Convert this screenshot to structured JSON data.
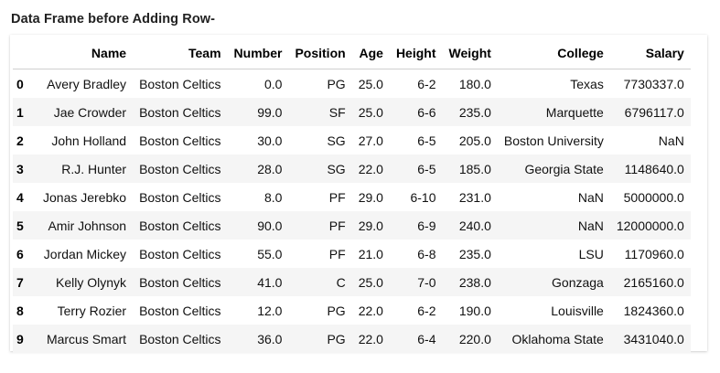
{
  "heading": "Data Frame before Adding Row-",
  "table": {
    "columns": [
      "",
      "Name",
      "Team",
      "Number",
      "Position",
      "Age",
      "Height",
      "Weight",
      "College",
      "Salary"
    ],
    "rows": [
      [
        "0",
        "Avery Bradley",
        "Boston Celtics",
        "0.0",
        "PG",
        "25.0",
        "6-2",
        "180.0",
        "Texas",
        "7730337.0"
      ],
      [
        "1",
        "Jae Crowder",
        "Boston Celtics",
        "99.0",
        "SF",
        "25.0",
        "6-6",
        "235.0",
        "Marquette",
        "6796117.0"
      ],
      [
        "2",
        "John Holland",
        "Boston Celtics",
        "30.0",
        "SG",
        "27.0",
        "6-5",
        "205.0",
        "Boston University",
        "NaN"
      ],
      [
        "3",
        "R.J. Hunter",
        "Boston Celtics",
        "28.0",
        "SG",
        "22.0",
        "6-5",
        "185.0",
        "Georgia State",
        "1148640.0"
      ],
      [
        "4",
        "Jonas Jerebko",
        "Boston Celtics",
        "8.0",
        "PF",
        "29.0",
        "6-10",
        "231.0",
        "NaN",
        "5000000.0"
      ],
      [
        "5",
        "Amir Johnson",
        "Boston Celtics",
        "90.0",
        "PF",
        "29.0",
        "6-9",
        "240.0",
        "NaN",
        "12000000.0"
      ],
      [
        "6",
        "Jordan Mickey",
        "Boston Celtics",
        "55.0",
        "PF",
        "21.0",
        "6-8",
        "235.0",
        "LSU",
        "1170960.0"
      ],
      [
        "7",
        "Kelly Olynyk",
        "Boston Celtics",
        "41.0",
        "C",
        "25.0",
        "7-0",
        "238.0",
        "Gonzaga",
        "2165160.0"
      ],
      [
        "8",
        "Terry Rozier",
        "Boston Celtics",
        "12.0",
        "PG",
        "22.0",
        "6-2",
        "190.0",
        "Louisville",
        "1824360.0"
      ],
      [
        "9",
        "Marcus Smart",
        "Boston Celtics",
        "36.0",
        "PG",
        "22.0",
        "6-4",
        "220.0",
        "Oklahoma State",
        "3431040.0"
      ]
    ]
  }
}
